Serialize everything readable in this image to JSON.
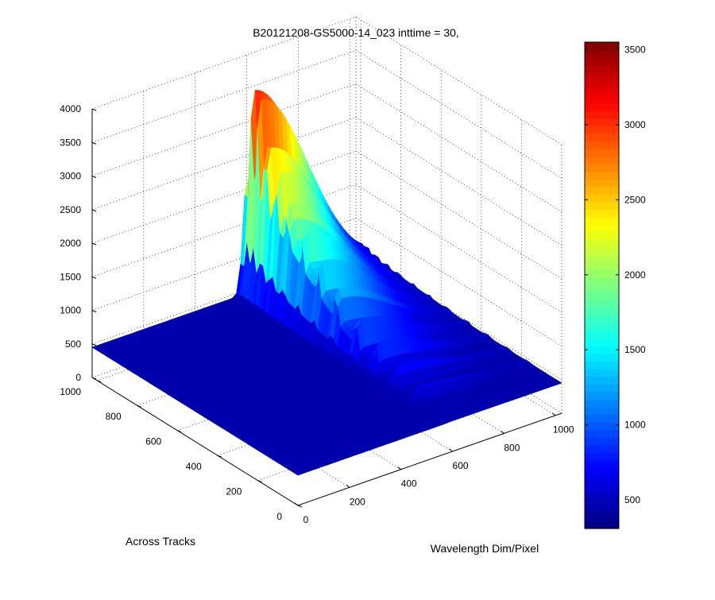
{
  "chart_data": {
    "type": "surface",
    "title": "B20121208-GS5000-14_023 inttime = 30,",
    "xlabel": "Wavelength Dim/Pixel",
    "ylabel": "Across Tracks",
    "zlabel": "",
    "xlim": [
      0,
      1024
    ],
    "ylim": [
      0,
      1024
    ],
    "zlim": [
      0,
      4000
    ],
    "x_ticks": [
      "0",
      "200",
      "400",
      "600",
      "800",
      "1000"
    ],
    "y_ticks": [
      "0",
      "200",
      "400",
      "600",
      "800",
      "1000"
    ],
    "z_ticks": [
      "0",
      "500",
      "1000",
      "1500",
      "2000",
      "2500",
      "3000",
      "3500",
      "4000"
    ],
    "grid": true,
    "colormap": "jet",
    "colorbar": {
      "range": [
        310,
        3550
      ],
      "ticks": [
        "500",
        "1000",
        "1500",
        "2000",
        "2500",
        "3000",
        "3500"
      ]
    },
    "surface": {
      "baseline": 450,
      "peak_value": 3550,
      "peak_across_track": 1000,
      "peak_wavelength_range": [
        600,
        1024
      ],
      "ridge_count": 12,
      "ridges_across_track": [
        990,
        960,
        920,
        870,
        810,
        740,
        660,
        570,
        470,
        370,
        270,
        170
      ],
      "ridge_peak_values": [
        3550,
        3450,
        3150,
        2700,
        2300,
        1950,
        1650,
        1400,
        1150,
        950,
        780,
        650
      ]
    }
  }
}
